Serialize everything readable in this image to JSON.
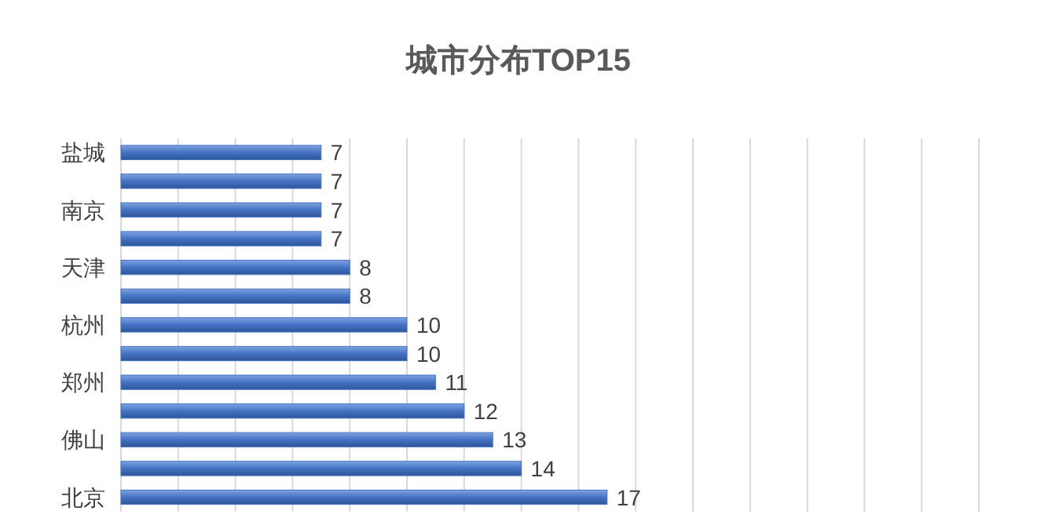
{
  "chart_data": {
    "type": "bar",
    "orientation": "horizontal",
    "title": "城市分布TOP15",
    "categories": [
      "盐城",
      null,
      "南京",
      null,
      "天津",
      null,
      "杭州",
      null,
      "郑州",
      null,
      "佛山",
      null,
      "北京"
    ],
    "values": [
      7,
      7,
      7,
      7,
      8,
      8,
      10,
      10,
      11,
      12,
      13,
      14,
      17
    ],
    "color": "#4472c4",
    "data_labels": true,
    "grid": "x",
    "tick_labels": "y",
    "xlim": [
      0,
      30
    ],
    "xticks": [
      {
        "value": 0,
        "label": null
      },
      {
        "value": 2,
        "label": null
      },
      {
        "value": 4,
        "label": null
      },
      {
        "value": 6,
        "label": null
      },
      {
        "value": 8,
        "label": null
      },
      {
        "value": 10,
        "label": null
      },
      {
        "value": 12,
        "label": null
      },
      {
        "value": 14,
        "label": null
      },
      {
        "value": 16,
        "label": null
      },
      {
        "value": 18,
        "label": null
      },
      {
        "value": 20,
        "label": null
      },
      {
        "value": 22,
        "label": null
      },
      {
        "value": 24,
        "label": null
      },
      {
        "value": 26,
        "label": null
      },
      {
        "value": 28,
        "label": null
      },
      {
        "value": 30,
        "label": null
      }
    ]
  }
}
